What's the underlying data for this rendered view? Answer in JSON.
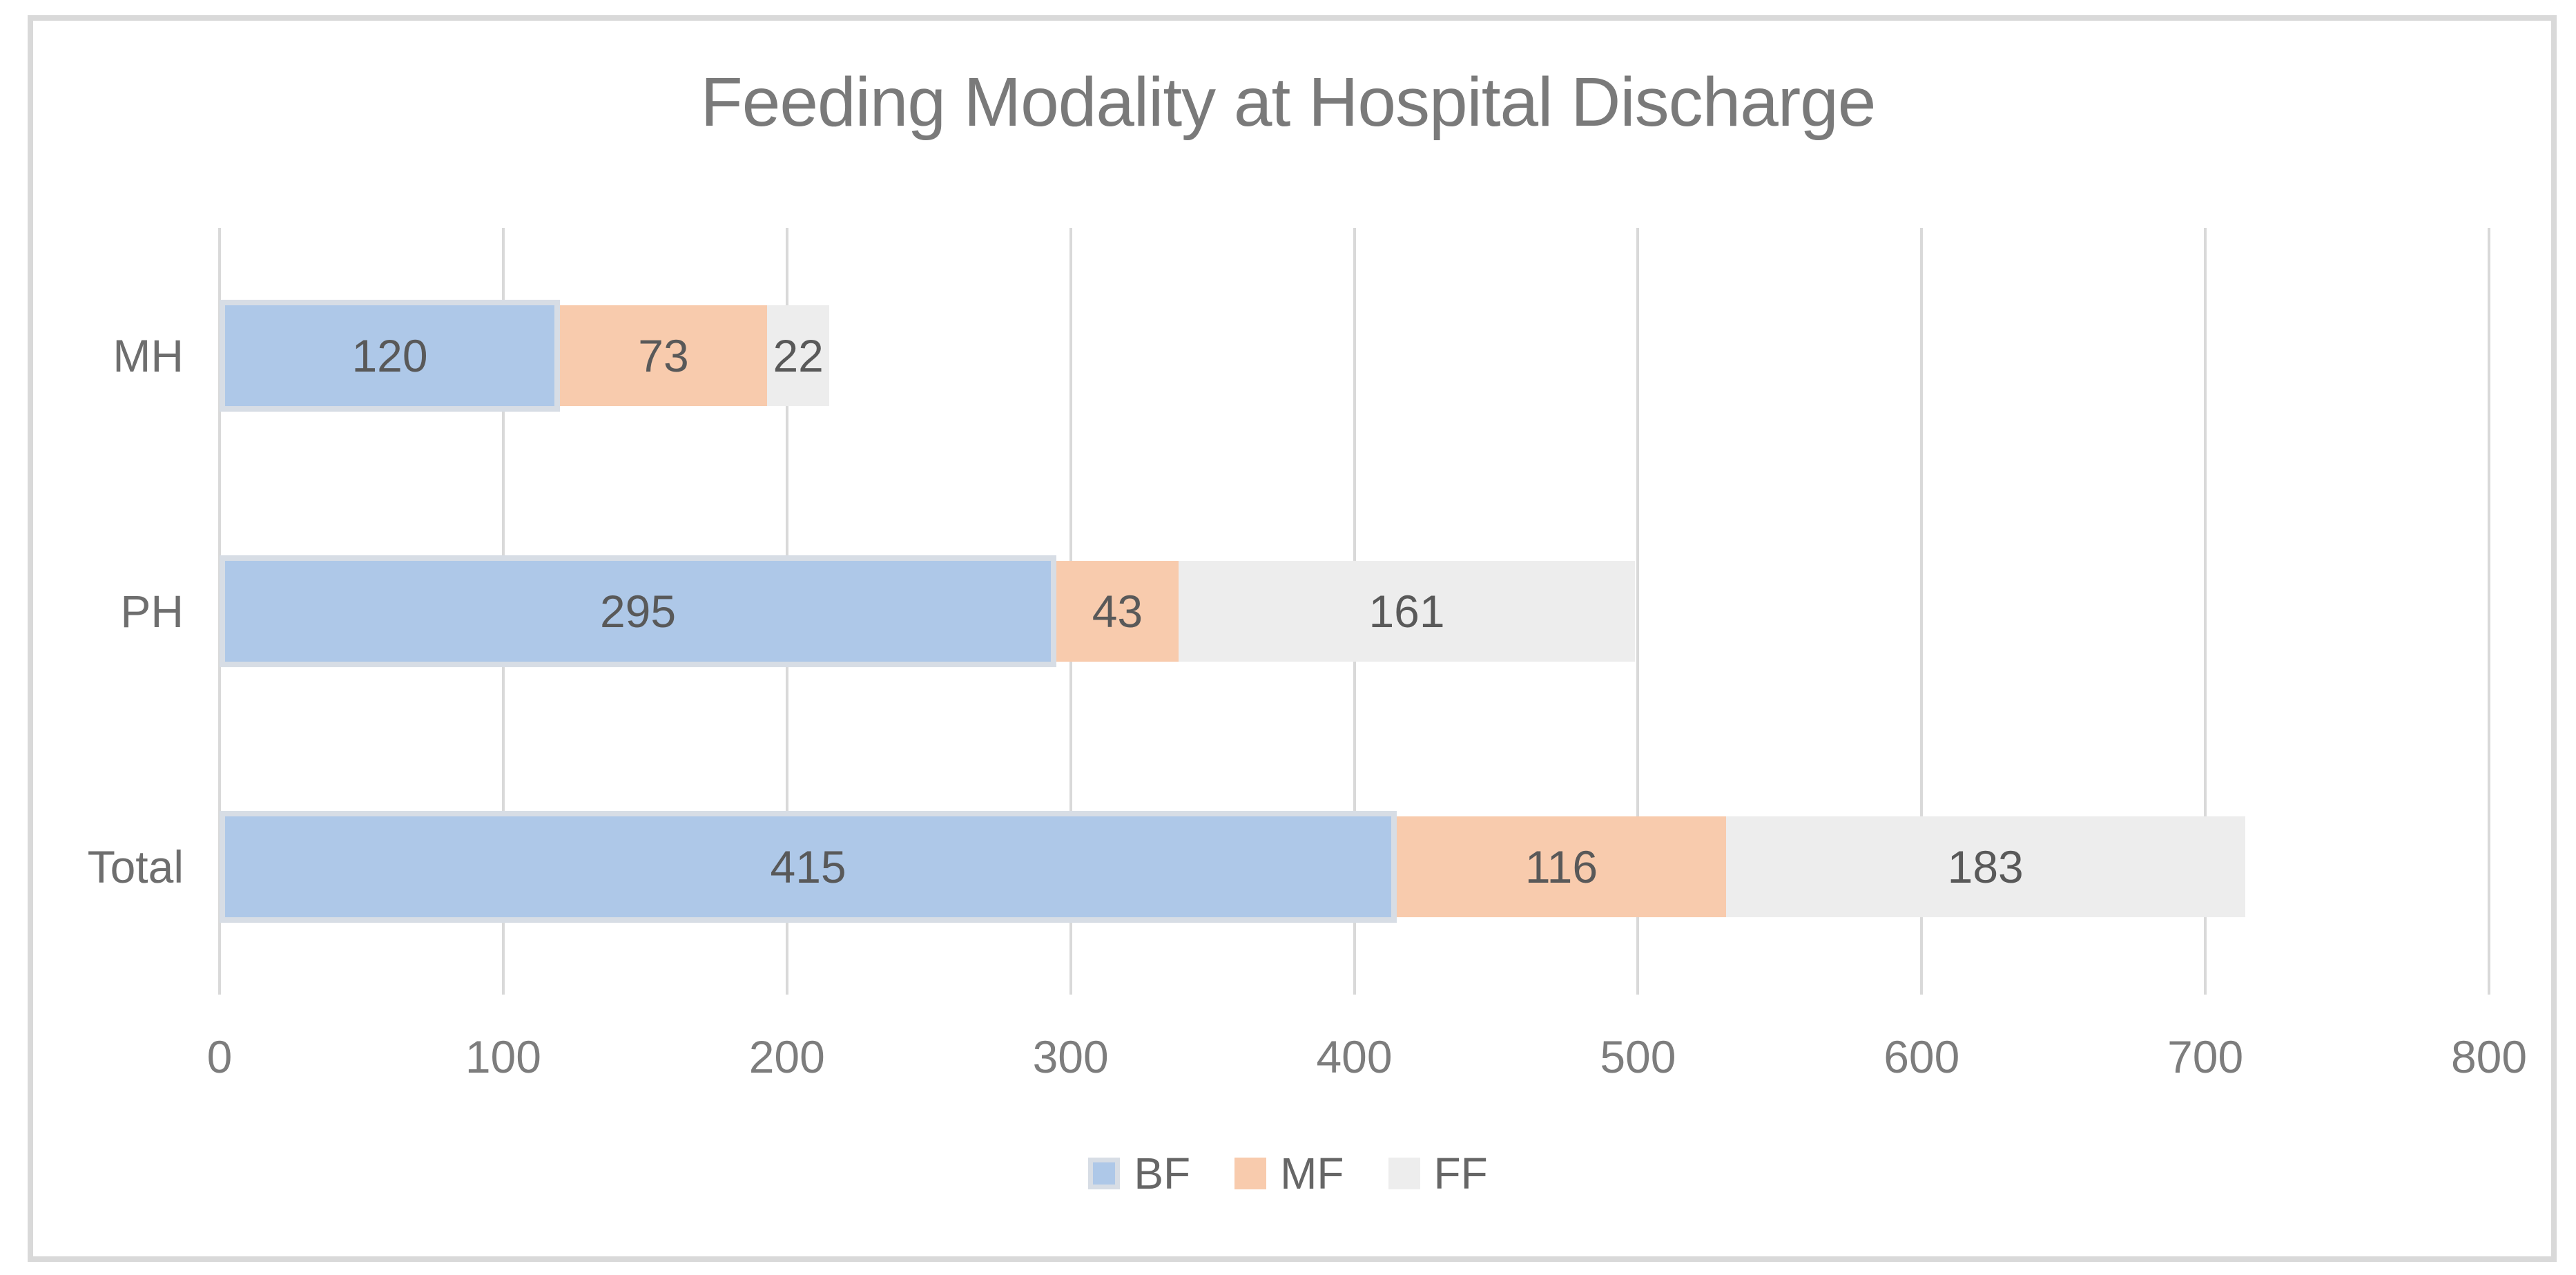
{
  "chart_data": {
    "type": "bar",
    "orientation": "horizontal",
    "stacked": true,
    "title": "Feeding Modality at Hospital Discharge",
    "categories": [
      "MH",
      "PH",
      "Total"
    ],
    "series": [
      {
        "name": "BF",
        "color": "#AEC8E8",
        "border_color": "#D7DDE5",
        "values": [
          120,
          295,
          415
        ]
      },
      {
        "name": "MF",
        "color": "#F8CBAD",
        "values": [
          73,
          43,
          116
        ]
      },
      {
        "name": "FF",
        "color": "#EDEDED",
        "values": [
          22,
          161,
          183
        ]
      }
    ],
    "xlabel": "",
    "ylabel": "",
    "xlim": [
      0,
      800
    ],
    "x_ticks": [
      0,
      100,
      200,
      300,
      400,
      500,
      600,
      700,
      800
    ],
    "grid": "vertical",
    "legend_position": "bottom",
    "data_labels": "inside-center"
  },
  "colors": {
    "gridline": "#D9D9D9",
    "frame_border": "#D9D9D9",
    "title_text": "#7A7A7A",
    "category_text": "#6E6E6E",
    "tick_text": "#7D7D7D",
    "data_label_text": "#595959",
    "legend_text": "#666666",
    "background": "#FFFFFF"
  }
}
